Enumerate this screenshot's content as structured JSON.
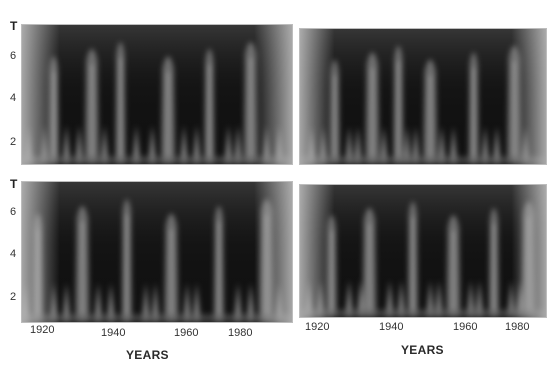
{
  "chart_data": [
    {
      "type": "heatmap",
      "panel": "top-left",
      "xlabel": "",
      "ylabel": "T",
      "yticks": [
        "2",
        "4",
        "6"
      ],
      "xlim": [
        1913,
        1998
      ],
      "ylim": [
        1,
        7.5
      ],
      "yscale": "log",
      "colormap": "grayscale",
      "bright_bands_years": [
        1923,
        1935,
        1944,
        1959,
        1972,
        1985
      ],
      "low_period_spikes_years": [
        1915,
        1920,
        1927,
        1931,
        1939,
        1949,
        1954,
        1964,
        1968,
        1978,
        1981,
        1990,
        1994
      ]
    },
    {
      "type": "heatmap",
      "panel": "top-right",
      "xlabel": "",
      "ylabel": "",
      "xlim": [
        1913,
        1998
      ],
      "ylim": [
        1,
        7.5
      ],
      "yscale": "log",
      "colormap": "grayscale",
      "bright_bands_years": [
        1925,
        1938,
        1947,
        1958,
        1973,
        1987
      ],
      "low_period_spikes_years": [
        1917,
        1921,
        1930,
        1933,
        1942,
        1950,
        1953,
        1962,
        1966,
        1977,
        1981,
        1991
      ]
    },
    {
      "type": "heatmap",
      "panel": "bottom-left",
      "xlabel": "YEARS",
      "ylabel": "T",
      "xticks": [
        "1920",
        "1940",
        "1960",
        "1980"
      ],
      "yticks": [
        "2",
        "4",
        "6"
      ],
      "xlim": [
        1913,
        1998
      ],
      "ylim": [
        1,
        7.5
      ],
      "yscale": "log",
      "colormap": "grayscale",
      "bright_bands_years": [
        1918,
        1932,
        1946,
        1960,
        1975,
        1990
      ],
      "low_period_spikes_years": [
        1914,
        1923,
        1927,
        1937,
        1941,
        1952,
        1955,
        1965,
        1968,
        1981,
        1985,
        1994
      ]
    },
    {
      "type": "heatmap",
      "panel": "bottom-right",
      "xlabel": "YEARS",
      "ylabel": "",
      "xticks": [
        "1920",
        "1940",
        "1960",
        "1980"
      ],
      "xlim": [
        1913,
        1998
      ],
      "ylim": [
        1,
        7.5
      ],
      "yscale": "log",
      "colormap": "grayscale",
      "bright_bands_years": [
        1924,
        1937,
        1952,
        1966,
        1980,
        1992
      ],
      "low_period_spikes_years": [
        1916,
        1920,
        1930,
        1934,
        1944,
        1948,
        1958,
        1961,
        1972,
        1975,
        1986,
        1989
      ]
    }
  ]
}
